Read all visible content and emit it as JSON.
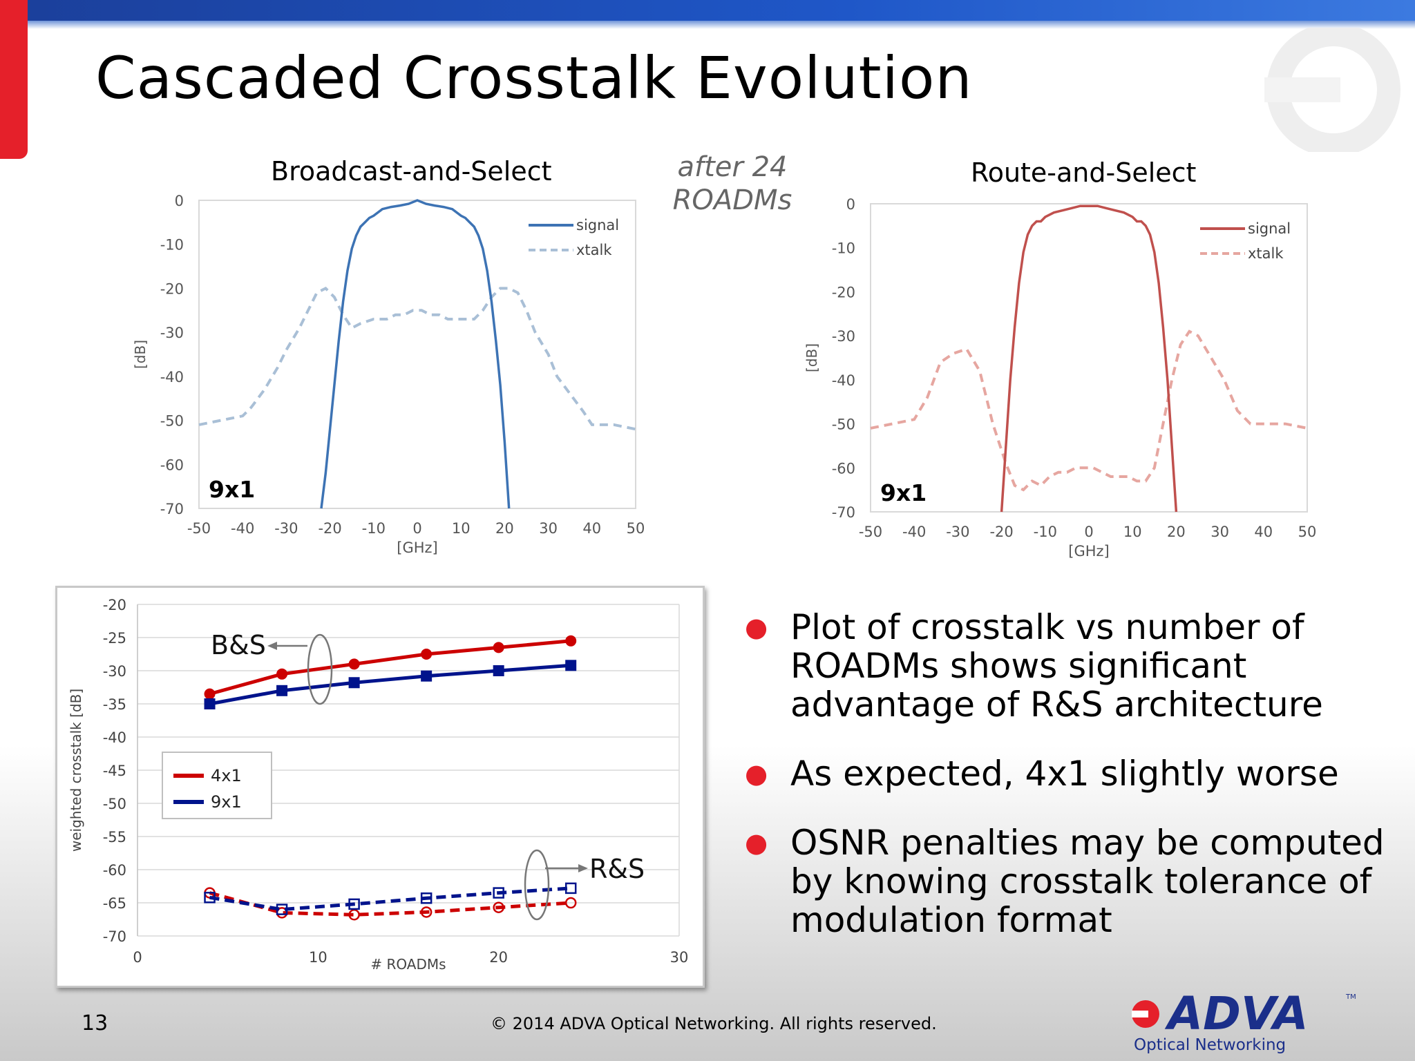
{
  "slide": {
    "title": "Cascaded Crosstalk Evolution",
    "after_note": [
      "after 24",
      "ROADMs"
    ],
    "page_number": "13",
    "copyright": "© 2014 ADVA Optical Networking. All rights reserved.",
    "logo_text": "ADVA",
    "logo_tm": "TM",
    "logo_subtext": "Optical Networking",
    "bullets": [
      "Plot of crosstalk vs number of ROADMs shows significant advantage of R&S architecture",
      "As expected, 4x1 slightly worse",
      "OSNR penalties may be computed by knowing crosstalk tolerance of modulation format"
    ],
    "colors": {
      "accent_red": "#e5202a",
      "bar_blue": "#1f57c8"
    }
  },
  "chart_data": [
    {
      "type": "line",
      "title": "Broadcast-and-Select",
      "xlabel": "[GHz]",
      "ylabel": "[dB]",
      "xlim": [
        -50,
        50
      ],
      "ylim": [
        -70,
        0
      ],
      "xticks": [
        -50,
        -40,
        -30,
        -20,
        -10,
        0,
        10,
        20,
        30,
        40,
        50
      ],
      "yticks": [
        0,
        -10,
        -20,
        -30,
        -40,
        -50,
        -60,
        -70
      ],
      "annotation": "9x1",
      "legend": "top-right",
      "series": [
        {
          "name": "signal",
          "style": "solid",
          "color": "#3d73b4",
          "x": [
            -22,
            -21,
            -20,
            -19,
            -18,
            -17,
            -16,
            -15,
            -14,
            -13,
            -12,
            -11,
            -10,
            -8,
            -6,
            -4,
            -2,
            0,
            2,
            4,
            6,
            8,
            10,
            11,
            12,
            13,
            14,
            15,
            16,
            17,
            18,
            19,
            20,
            21
          ],
          "y": [
            -70,
            -62,
            -52,
            -42,
            -32,
            -23,
            -16,
            -11,
            -8,
            -6,
            -5,
            -4,
            -3.5,
            -2,
            -1.5,
            -1.2,
            -0.8,
            0,
            -0.8,
            -1.2,
            -1.5,
            -2,
            -3.5,
            -4,
            -5,
            -6,
            -8,
            -11,
            -16,
            -23,
            -32,
            -42,
            -55,
            -70
          ]
        },
        {
          "name": "xtalk",
          "style": "dashed",
          "color": "#a9bfd6",
          "x": [
            -50,
            -45,
            -40,
            -38,
            -35,
            -32,
            -30,
            -27,
            -25,
            -23,
            -21,
            -19,
            -17,
            -15,
            -13,
            -10,
            -7,
            -5,
            -3,
            -1,
            0,
            1,
            3,
            5,
            7,
            10,
            13,
            15,
            17,
            19,
            21,
            23,
            25,
            27,
            30,
            32,
            35,
            38,
            40,
            45,
            50
          ],
          "y": [
            -51,
            -50,
            -49,
            -47,
            -43,
            -38,
            -34,
            -29,
            -25,
            -21,
            -20,
            -22,
            -26,
            -29,
            -28,
            -27,
            -27,
            -26,
            -26,
            -25,
            -25,
            -25,
            -26,
            -26,
            -27,
            -27,
            -27,
            -25,
            -22,
            -20,
            -20,
            -21,
            -25,
            -30,
            -35,
            -40,
            -44,
            -48,
            -51,
            -51,
            -52
          ]
        }
      ]
    },
    {
      "type": "line",
      "title": "Route-and-Select",
      "xlabel": "[GHz]",
      "ylabel": "[dB]",
      "xlim": [
        -50,
        50
      ],
      "ylim": [
        -70,
        0
      ],
      "xticks": [
        -50,
        -40,
        -30,
        -20,
        -10,
        0,
        10,
        20,
        30,
        40,
        50
      ],
      "yticks": [
        0,
        -10,
        -20,
        -30,
        -40,
        -50,
        -60,
        -70
      ],
      "annotation": "9x1",
      "legend": "top-right",
      "series": [
        {
          "name": "signal",
          "style": "solid",
          "color": "#c0504d",
          "x": [
            -20,
            -19,
            -18,
            -17,
            -16,
            -15,
            -14,
            -13,
            -12,
            -11,
            -10,
            -8,
            -6,
            -4,
            -2,
            0,
            2,
            4,
            6,
            8,
            10,
            11,
            12,
            13,
            14,
            15,
            16,
            17,
            18,
            19,
            20
          ],
          "y": [
            -70,
            -55,
            -40,
            -28,
            -18,
            -11,
            -7,
            -5,
            -4,
            -4,
            -3,
            -2,
            -1.5,
            -1,
            -0.5,
            -0.5,
            -0.5,
            -1,
            -1.5,
            -2,
            -3,
            -4,
            -4,
            -5,
            -7,
            -11,
            -18,
            -28,
            -40,
            -55,
            -70
          ]
        },
        {
          "name": "xtalk",
          "style": "dashed",
          "color": "#e6a6a0",
          "x": [
            -50,
            -45,
            -40,
            -37,
            -34,
            -31,
            -28,
            -25,
            -22,
            -19,
            -17,
            -15,
            -13,
            -11,
            -9,
            -7,
            -5,
            -3,
            -1,
            0,
            1,
            3,
            5,
            7,
            9,
            11,
            13,
            15,
            17,
            19,
            21,
            23,
            25,
            28,
            31,
            34,
            37,
            40,
            45,
            50
          ],
          "y": [
            -51,
            -50,
            -49,
            -44,
            -36,
            -34,
            -33,
            -38,
            -50,
            -59,
            -64,
            -65,
            -63,
            -64,
            -62,
            -61,
            -61,
            -60,
            -60,
            -60,
            -60,
            -61,
            -62,
            -62,
            -62,
            -63,
            -63,
            -60,
            -50,
            -40,
            -32,
            -29,
            -30,
            -35,
            -40,
            -47,
            -50,
            -50,
            -50,
            -51
          ]
        }
      ]
    },
    {
      "type": "line",
      "title": "",
      "xlabel": "# ROADMs",
      "ylabel": "weighted crosstalk [dB]",
      "xlim": [
        0,
        30
      ],
      "ylim": [
        -70,
        -20
      ],
      "xticks": [
        0,
        10,
        20,
        30
      ],
      "yticks": [
        -20,
        -25,
        -30,
        -35,
        -40,
        -45,
        -50,
        -55,
        -60,
        -65,
        -70
      ],
      "legend": "left-middle",
      "annotations": [
        "B&S",
        "R&S"
      ],
      "series": [
        {
          "name": "4x1",
          "group": "B&S",
          "style": "solid",
          "marker": "circle",
          "color": "#cc0000",
          "x": [
            4,
            8,
            12,
            16,
            20,
            24
          ],
          "y": [
            -33.5,
            -30.5,
            -29,
            -27.5,
            -26.5,
            -25.5
          ]
        },
        {
          "name": "9x1",
          "group": "B&S",
          "style": "solid",
          "marker": "square",
          "color": "#00138c",
          "x": [
            4,
            8,
            12,
            16,
            20,
            24
          ],
          "y": [
            -35,
            -33,
            -31.8,
            -30.8,
            -30,
            -29.2
          ]
        },
        {
          "group": "R&S",
          "style": "dashed",
          "marker": "circle-open",
          "color": "#cc0000",
          "x": [
            4,
            8,
            12,
            16,
            20,
            24
          ],
          "y": [
            -63.5,
            -66.5,
            -66.8,
            -66.4,
            -65.7,
            -65
          ]
        },
        {
          "group": "R&S",
          "style": "dashed",
          "marker": "square-open",
          "color": "#00138c",
          "x": [
            4,
            8,
            12,
            16,
            20,
            24
          ],
          "y": [
            -64.2,
            -66,
            -65.2,
            -64.3,
            -63.5,
            -62.8
          ]
        }
      ]
    }
  ]
}
